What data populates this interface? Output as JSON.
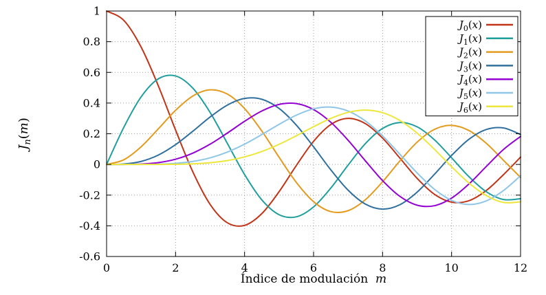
{
  "chart_data": {
    "type": "line",
    "title": "",
    "xlabel": "Índice de modulación m",
    "ylabel": "J_n(m)",
    "grid": "dotted",
    "legend_position": "top-right",
    "x_axis": {
      "min": 0,
      "max": 12,
      "ticks": [
        0,
        2,
        4,
        6,
        8,
        10,
        12
      ]
    },
    "y_axis": {
      "min": -0.6,
      "max": 1,
      "ticks": [
        -0.6,
        -0.4,
        -0.2,
        0,
        0.2,
        0.4,
        0.6,
        0.8,
        1
      ]
    },
    "x_start": 0,
    "x_step": 0.5,
    "series": [
      {
        "label": "J_0(x)",
        "order": 0,
        "color": "#c23417",
        "values": [
          1.0,
          0.9385,
          0.7652,
          0.5118,
          0.2239,
          -0.0484,
          -0.2601,
          -0.3801,
          -0.3971,
          -0.3205,
          -0.1776,
          -0.0068,
          0.1506,
          0.2601,
          0.3001,
          0.2663,
          0.1717,
          0.0419,
          -0.0903,
          -0.1939,
          -0.2459,
          -0.2366,
          -0.1712,
          -0.0677,
          0.0477
        ]
      },
      {
        "label": "J_1(x)",
        "order": 1,
        "color": "#1f9e9e",
        "values": [
          0.0,
          0.2423,
          0.4401,
          0.5579,
          0.5767,
          0.4971,
          0.3391,
          0.1374,
          -0.066,
          -0.2311,
          -0.3276,
          -0.3414,
          -0.2767,
          -0.1538,
          -0.0047,
          0.1352,
          0.2346,
          0.2731,
          0.2453,
          0.1613,
          0.0435,
          -0.0789,
          -0.1768,
          -0.2284,
          -0.2234
        ]
      },
      {
        "label": "J_2(x)",
        "order": 2,
        "color": "#e39a1d",
        "values": [
          0.0,
          0.0306,
          0.1149,
          0.2321,
          0.3528,
          0.4461,
          0.4861,
          0.4586,
          0.3641,
          0.2178,
          0.0466,
          -0.1173,
          -0.2429,
          -0.3074,
          -0.3014,
          -0.2303,
          -0.113,
          0.0223,
          0.1448,
          0.2279,
          0.2546,
          0.2216,
          0.139,
          0.0279,
          -0.0849
        ]
      },
      {
        "label": "J_3(x)",
        "order": 3,
        "color": "#2e6f9e",
        "values": [
          0.0,
          0.0026,
          0.0196,
          0.061,
          0.1289,
          0.2166,
          0.3091,
          0.3868,
          0.4302,
          0.4247,
          0.3648,
          0.2561,
          0.1148,
          -0.0353,
          -0.1676,
          -0.2581,
          -0.2911,
          -0.2626,
          -0.1809,
          -0.0653,
          0.0584,
          0.1633,
          0.2273,
          0.2381,
          0.1951
        ]
      },
      {
        "label": "J_4(x)",
        "order": 4,
        "color": "#9400d3",
        "values": [
          0.0,
          0.0002,
          0.0025,
          0.0118,
          0.034,
          0.0738,
          0.132,
          0.2044,
          0.2811,
          0.3484,
          0.3912,
          0.3967,
          0.3576,
          0.2748,
          0.1578,
          0.0238,
          -0.1054,
          -0.2077,
          -0.2655,
          -0.2691,
          -0.2196,
          -0.1283,
          -0.015,
          0.0963,
          0.1825
        ]
      },
      {
        "label": "J_5(x)",
        "order": 5,
        "color": "#8ec6e8",
        "values": [
          0.0,
          0.0,
          0.0002,
          0.0018,
          0.007,
          0.0195,
          0.043,
          0.0804,
          0.1321,
          0.1947,
          0.2611,
          0.3209,
          0.3621,
          0.3736,
          0.3479,
          0.2835,
          0.1858,
          0.0671,
          -0.055,
          -0.1613,
          -0.2341,
          -0.2611,
          -0.2383,
          -0.1711,
          -0.0735
        ]
      },
      {
        "label": "J_6(x)",
        "order": 6,
        "color": "#ece73a",
        "values": [
          0.0,
          0.0,
          0.0,
          0.0002,
          0.0012,
          0.0042,
          0.0114,
          0.0254,
          0.0491,
          0.0843,
          0.131,
          0.1868,
          0.2458,
          0.2999,
          0.3392,
          0.3541,
          0.3376,
          0.2867,
          0.2043,
          0.0993,
          -0.0145,
          -0.1203,
          -0.2016,
          -0.2477,
          -0.2437
        ]
      }
    ]
  },
  "style": {
    "grid_color": "#9a9a9a",
    "axis_color": "#000000",
    "legend_border_color": "#000000",
    "background_color": "#ffffff"
  }
}
